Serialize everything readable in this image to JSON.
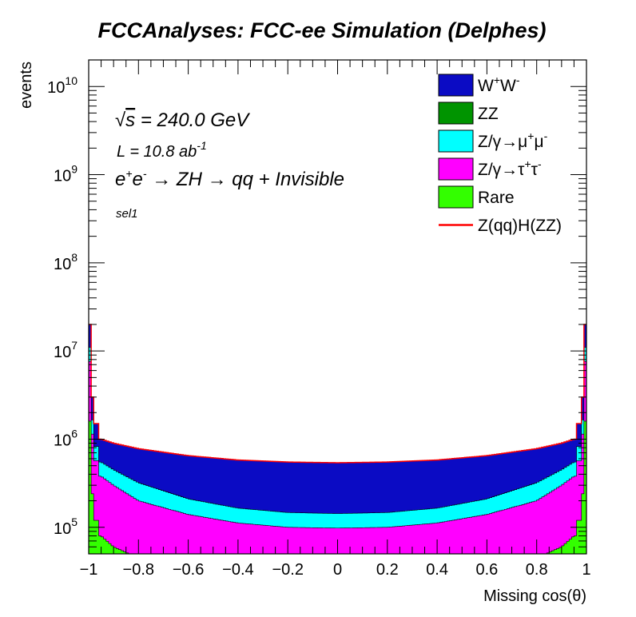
{
  "chart_data": {
    "type": "area",
    "title": "FCCAnalyses: FCC-ee Simulation (Delphes)",
    "xlabel": "Missing cos(θ)",
    "ylabel": "events",
    "xlim": [
      -1,
      1
    ],
    "ylim": [
      50000,
      20000000000
    ],
    "log_y": true,
    "grid": false,
    "legend_position": "top-right",
    "x_ticks": [
      "−1",
      "−0.8",
      "−0.6",
      "−0.4",
      "−0.2",
      "0",
      "0.2",
      "0.4",
      "0.6",
      "0.8",
      "1"
    ],
    "y_tick_bases": [
      "10",
      "10",
      "10",
      "10",
      "10",
      "10"
    ],
    "y_tick_exps": [
      "5",
      "6",
      "7",
      "8",
      "9",
      "10"
    ],
    "annotations": {
      "sqrt_s": "√s = 240.0 GeV",
      "sqrt_s_sym": "√",
      "sqrt_s_var": "s",
      "sqrt_s_rest": " = 240.0 GeV",
      "lumi_base": "L = 10.8 ab",
      "lumi_exp": "-1",
      "process": "e⁺e⁻ → ZH → qq + Invisible",
      "proc_e1": "e",
      "proc_sup1": "+",
      "proc_e2": "e",
      "proc_sup2": "-",
      "proc_rest": " → ZH → qq + Invisible",
      "selection": "sel1"
    },
    "x": [
      -0.95,
      -0.9,
      -0.8,
      -0.6,
      -0.4,
      -0.2,
      0.0,
      0.2,
      0.4,
      0.6,
      0.8,
      0.9,
      0.95
    ],
    "series": [
      {
        "name": "W⁺W⁻",
        "stack_totals": [
          1000000,
          900000,
          780000,
          650000,
          580000,
          550000,
          540000,
          550000,
          580000,
          650000,
          780000,
          900000,
          1000000
        ]
      },
      {
        "name": "ZZ",
        "stack_totals": [
          60000,
          50000,
          40000,
          30000,
          25000,
          22000,
          20000,
          22000,
          25000,
          30000,
          40000,
          50000,
          60000
        ]
      },
      {
        "name": "Z/γ→μ⁺μ⁻",
        "stack_totals": [
          550000,
          450000,
          320000,
          210000,
          165000,
          147000,
          143000,
          147000,
          165000,
          210000,
          320000,
          450000,
          550000
        ]
      },
      {
        "name": "Z/γ→τ⁺τ⁻",
        "stack_totals": [
          380000,
          300000,
          200000,
          140000,
          112000,
          100000,
          98000,
          100000,
          112000,
          140000,
          200000,
          300000,
          380000
        ]
      },
      {
        "name": "Rare",
        "stack_totals": [
          80000,
          60000,
          45000,
          35000,
          30000,
          28000,
          27000,
          28000,
          30000,
          35000,
          45000,
          60000,
          80000
        ]
      },
      {
        "name": "Z(qq)H(ZZ)",
        "values": [
          1000000,
          900000,
          780000,
          650000,
          580000,
          550000,
          540000,
          550000,
          580000,
          650000,
          780000,
          900000,
          1000000
        ]
      }
    ],
    "legend": [
      {
        "label_base": "W",
        "sup1": "+",
        "mid": "W",
        "sup2": "-",
        "tail": "",
        "color": "#0b0bc4",
        "kind": "fill"
      },
      {
        "label_base": "ZZ",
        "sup1": "",
        "mid": "",
        "sup2": "",
        "tail": "",
        "color": "#009400",
        "kind": "fill"
      },
      {
        "label_base": "Z/γ→μ",
        "sup1": "+",
        "mid": "μ",
        "sup2": "-",
        "tail": "",
        "color": "#00ffff",
        "kind": "fill"
      },
      {
        "label_base": "Z/γ→τ",
        "sup1": "+",
        "mid": "τ",
        "sup2": "-",
        "tail": "",
        "color": "#ff00ff",
        "kind": "fill"
      },
      {
        "label_base": "Rare",
        "sup1": "",
        "mid": "",
        "sup2": "",
        "tail": "",
        "color": "#33ff00",
        "kind": "fill"
      },
      {
        "label_base": "Z(qq)H(ZZ)",
        "sup1": "",
        "mid": "",
        "sup2": "",
        "tail": "",
        "color": "#ff0000",
        "kind": "line"
      }
    ]
  }
}
